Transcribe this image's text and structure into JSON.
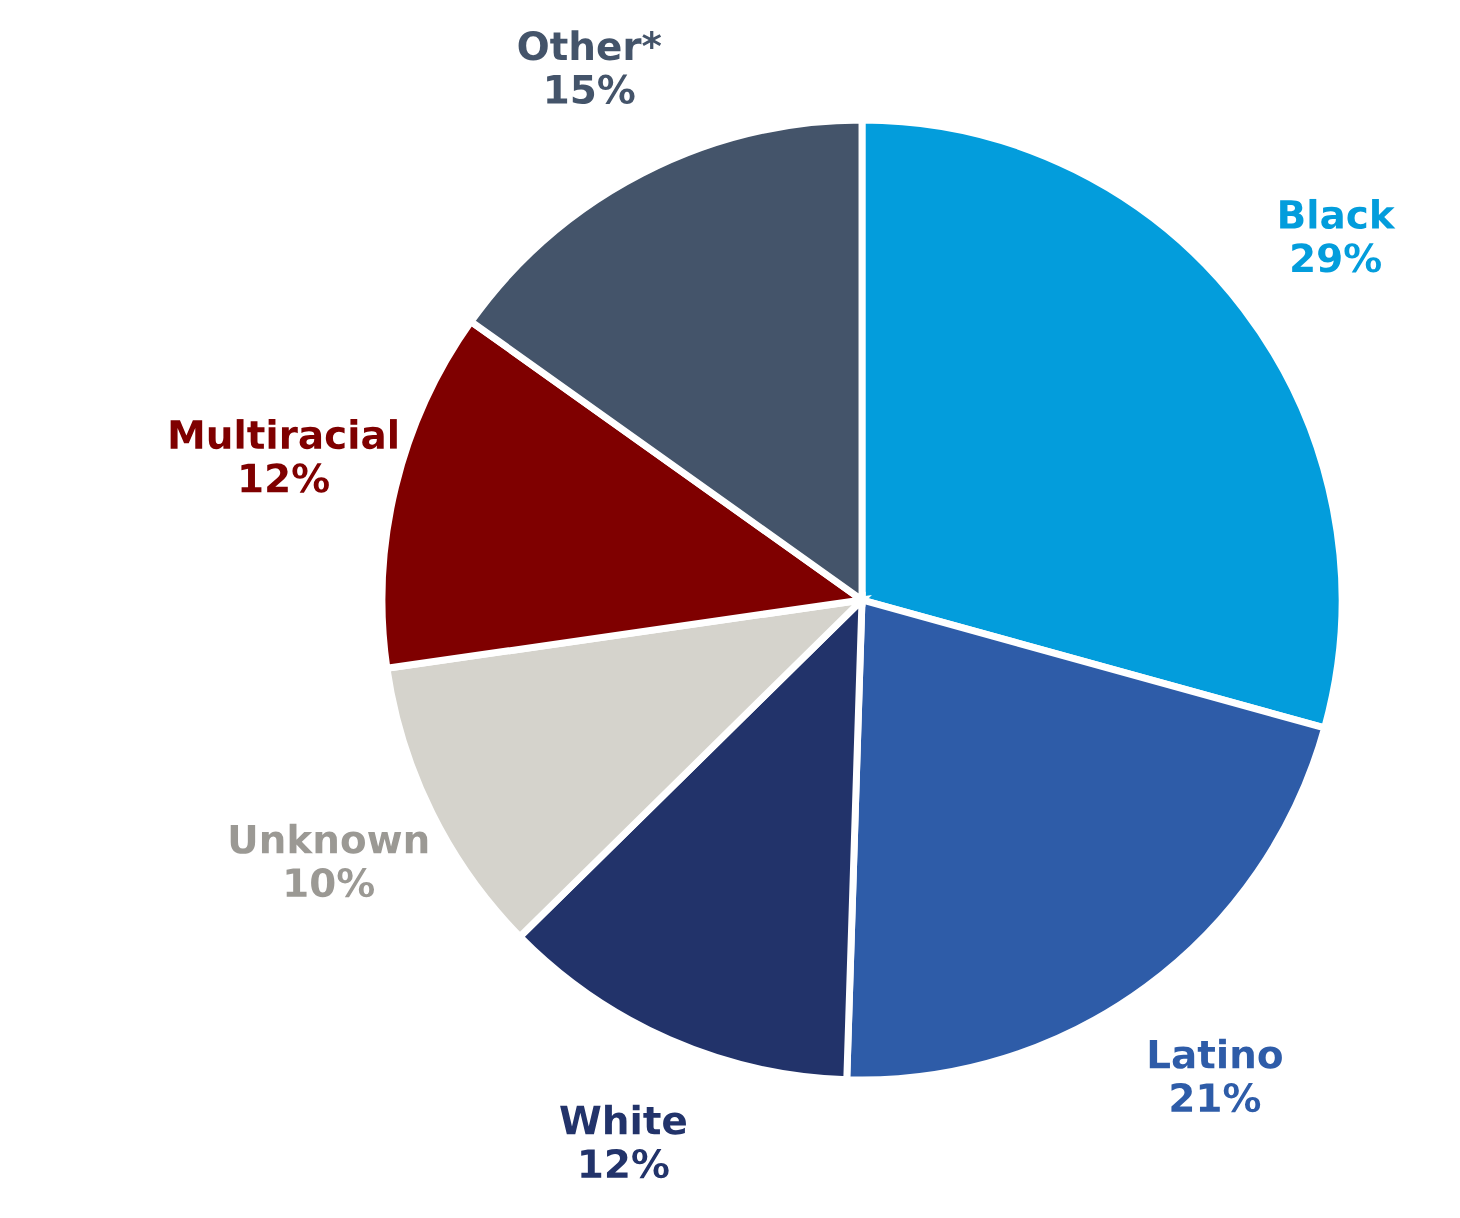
{
  "chart_data": {
    "type": "pie",
    "categories": [
      "Black",
      "Latino",
      "White",
      "Unknown",
      "Multiracial",
      "Other*"
    ],
    "values": [
      29,
      21,
      12,
      10,
      12,
      15
    ],
    "value_labels": [
      "29%",
      "21%",
      "12%",
      "10%",
      "12%",
      "15%"
    ],
    "colors": [
      "#039ddc",
      "#2e5ca8",
      "#22336a",
      "#d5d3cc",
      "#7f0000",
      "#44546a"
    ],
    "legend": false
  }
}
